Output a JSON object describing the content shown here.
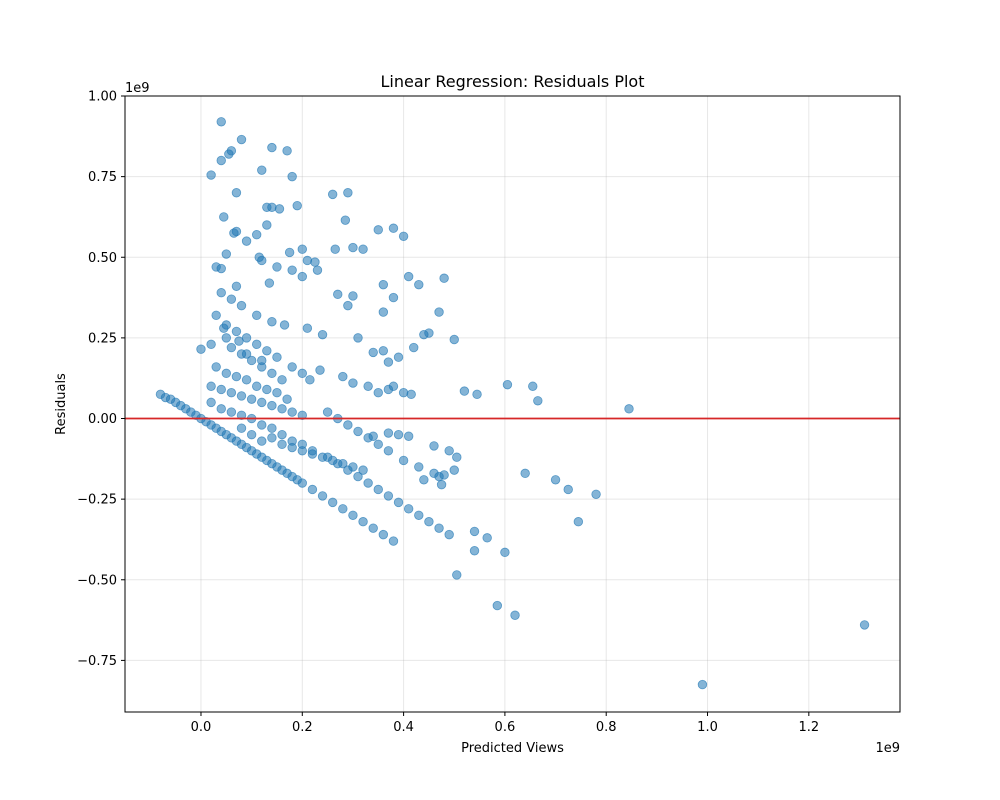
{
  "chart_data": {
    "type": "scatter",
    "title": "Linear Regression: Residuals Plot",
    "xlabel": "Predicted Views",
    "ylabel": "Residuals",
    "x_offset_label": "1e9",
    "y_offset_label": "1e9",
    "x_scale_label": 1000000000,
    "y_scale_label": 1000000000,
    "xlim": [
      -0.15,
      1.38
    ],
    "ylim": [
      -0.91,
      1.0
    ],
    "xticks": [
      0.0,
      0.2,
      0.4,
      0.6,
      0.8,
      1.0,
      1.2
    ],
    "xtick_labels": [
      "0.0",
      "0.2",
      "0.4",
      "0.6",
      "0.8",
      "1.0",
      "1.2"
    ],
    "yticks": [
      -0.75,
      -0.5,
      -0.25,
      0.0,
      0.25,
      0.5,
      0.75,
      1.0
    ],
    "ytick_labels": [
      "−0.75",
      "−0.50",
      "−0.25",
      "0.00",
      "0.25",
      "0.50",
      "0.75",
      "1.00"
    ],
    "grid": true,
    "point_color": "#1f77b4",
    "reference_line": {
      "y": 0.0,
      "color": "#d62728"
    },
    "points_scaled_1e9": {
      "x": [
        0.04,
        0.08,
        0.14,
        0.17,
        0.06,
        0.055,
        0.02,
        0.12,
        0.18,
        0.04,
        0.07,
        0.26,
        0.29,
        0.13,
        0.14,
        0.155,
        0.19,
        0.285,
        0.35,
        0.38,
        0.4,
        0.07,
        0.065,
        0.13,
        0.045,
        0.09,
        0.11,
        0.175,
        0.2,
        0.21,
        0.225,
        0.23,
        0.265,
        0.3,
        0.32,
        0.115,
        0.12,
        0.15,
        0.18,
        0.2,
        0.05,
        0.03,
        0.04,
        0.07,
        0.135,
        0.36,
        0.41,
        0.48,
        0.43,
        0.27,
        0.3,
        0.38,
        0.29,
        0.36,
        0.47,
        0.42,
        0.45,
        0.5,
        0.44,
        0.04,
        0.06,
        0.08,
        0.11,
        0.14,
        0.165,
        0.21,
        0.24,
        0.31,
        0.34,
        0.36,
        0.37,
        0.39,
        0.0,
        0.02,
        0.045,
        0.05,
        0.075,
        0.09,
        0.12,
        0.15,
        0.18,
        0.2,
        0.215,
        0.235,
        0.28,
        0.3,
        0.33,
        0.35,
        0.37,
        0.38,
        0.4,
        0.415,
        0.52,
        0.545,
        0.605,
        0.655,
        0.665,
        0.845,
        -0.08,
        -0.07,
        -0.06,
        -0.05,
        -0.04,
        -0.03,
        -0.02,
        -0.01,
        0.0,
        0.01,
        0.02,
        0.03,
        0.04,
        0.05,
        0.06,
        0.07,
        0.08,
        0.09,
        0.1,
        0.11,
        0.12,
        0.13,
        0.14,
        0.15,
        0.16,
        0.17,
        0.18,
        0.19,
        0.2,
        0.22,
        0.24,
        0.26,
        0.28,
        0.3,
        0.32,
        0.34,
        0.36,
        0.38,
        0.02,
        0.04,
        0.06,
        0.08,
        0.1,
        0.12,
        0.14,
        0.16,
        0.18,
        0.2,
        0.22,
        0.25,
        0.27,
        0.29,
        0.31,
        0.33,
        0.35,
        0.37,
        0.39,
        0.41,
        0.43,
        0.45,
        0.47,
        0.49,
        0.505,
        0.4,
        0.43,
        0.46,
        0.5,
        0.475,
        0.44,
        0.47,
        0.34,
        0.37,
        0.39,
        0.41,
        0.46,
        0.48,
        0.49,
        0.54,
        0.565,
        0.6,
        0.64,
        0.7,
        0.725,
        0.745,
        0.78,
        0.505,
        0.54,
        0.585,
        0.62,
        0.99,
        1.31,
        0.03,
        0.05,
        0.07,
        0.09,
        0.11,
        0.13,
        0.03,
        0.05,
        0.07,
        0.09,
        0.11,
        0.13,
        0.15,
        0.17,
        0.02,
        0.04,
        0.06,
        0.08,
        0.1,
        0.12,
        0.14,
        0.16,
        0.18,
        0.2,
        0.06,
        0.08,
        0.1,
        0.12,
        0.14,
        0.16,
        0.08,
        0.1,
        0.12,
        0.14,
        0.16,
        0.18,
        0.2,
        0.22,
        0.24,
        0.26,
        0.28,
        0.3,
        0.32,
        0.25,
        0.27,
        0.29,
        0.31,
        0.33,
        0.35,
        0.37
      ],
      "y": [
        0.92,
        0.865,
        0.84,
        0.83,
        0.83,
        0.82,
        0.755,
        0.77,
        0.75,
        0.8,
        0.7,
        0.695,
        0.7,
        0.655,
        0.655,
        0.65,
        0.66,
        0.615,
        0.585,
        0.59,
        0.565,
        0.58,
        0.575,
        0.6,
        0.625,
        0.55,
        0.57,
        0.515,
        0.525,
        0.49,
        0.485,
        0.46,
        0.525,
        0.53,
        0.525,
        0.5,
        0.49,
        0.47,
        0.46,
        0.44,
        0.51,
        0.47,
        0.465,
        0.41,
        0.42,
        0.415,
        0.44,
        0.435,
        0.415,
        0.385,
        0.38,
        0.375,
        0.35,
        0.33,
        0.33,
        0.22,
        0.265,
        0.245,
        0.26,
        0.39,
        0.37,
        0.35,
        0.32,
        0.3,
        0.29,
        0.28,
        0.26,
        0.25,
        0.205,
        0.21,
        0.175,
        0.19,
        0.215,
        0.23,
        0.28,
        0.25,
        0.24,
        0.2,
        0.18,
        0.19,
        0.16,
        0.14,
        0.12,
        0.15,
        0.13,
        0.11,
        0.1,
        0.08,
        0.09,
        0.1,
        0.08,
        0.075,
        0.085,
        0.075,
        0.105,
        0.1,
        0.055,
        0.03,
        0.075,
        0.065,
        0.06,
        0.05,
        0.04,
        0.03,
        0.02,
        0.01,
        0.0,
        -0.01,
        -0.02,
        -0.03,
        -0.04,
        -0.05,
        -0.06,
        -0.07,
        -0.08,
        -0.09,
        -0.1,
        -0.11,
        -0.12,
        -0.13,
        -0.14,
        -0.15,
        -0.16,
        -0.17,
        -0.18,
        -0.19,
        -0.2,
        -0.22,
        -0.24,
        -0.26,
        -0.28,
        -0.3,
        -0.32,
        -0.34,
        -0.36,
        -0.38,
        0.05,
        0.03,
        0.02,
        0.01,
        0.0,
        -0.02,
        -0.03,
        -0.05,
        -0.07,
        -0.08,
        -0.1,
        -0.12,
        -0.14,
        -0.16,
        -0.18,
        -0.2,
        -0.22,
        -0.24,
        -0.26,
        -0.28,
        -0.3,
        -0.32,
        -0.34,
        -0.36,
        -0.12,
        -0.13,
        -0.15,
        -0.17,
        -0.16,
        -0.205,
        -0.19,
        -0.18,
        -0.055,
        -0.045,
        -0.05,
        -0.055,
        -0.085,
        -0.175,
        -0.1,
        -0.35,
        -0.37,
        -0.415,
        -0.17,
        -0.19,
        -0.22,
        -0.32,
        -0.235,
        -0.485,
        -0.41,
        -0.58,
        -0.61,
        -0.825,
        -0.64,
        0.32,
        0.29,
        0.27,
        0.25,
        0.23,
        0.21,
        0.16,
        0.14,
        0.13,
        0.12,
        0.1,
        0.09,
        0.08,
        0.06,
        0.1,
        0.09,
        0.08,
        0.07,
        0.06,
        0.05,
        0.04,
        0.03,
        0.02,
        0.01,
        0.22,
        0.2,
        0.18,
        0.16,
        0.14,
        0.12,
        -0.03,
        -0.05,
        -0.07,
        -0.06,
        -0.08,
        -0.09,
        -0.1,
        -0.11,
        -0.12,
        -0.13,
        -0.14,
        -0.15,
        -0.16,
        0.02,
        0.0,
        -0.02,
        -0.04,
        -0.06,
        -0.08,
        -0.1
      ]
    }
  }
}
